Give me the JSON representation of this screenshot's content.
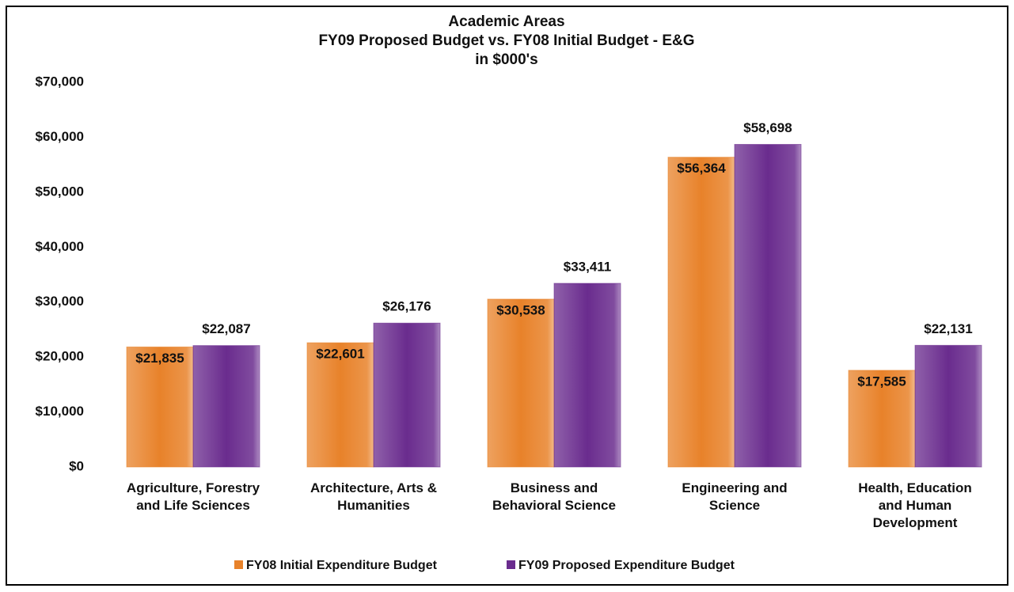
{
  "chart_data": {
    "type": "bar",
    "title_lines": [
      "Academic Areas",
      "FY09 Proposed Budget vs. FY08 Initial Budget - E&G",
      "in $000's"
    ],
    "categories": [
      [
        "Agriculture, Forestry",
        "and Life Sciences"
      ],
      [
        "Architecture, Arts &",
        "Humanities"
      ],
      [
        "Business and",
        "Behavioral Science"
      ],
      [
        "Engineering and",
        "Science"
      ],
      [
        "Health, Education",
        "and Human",
        "Development"
      ]
    ],
    "series": [
      {
        "name": "FY08 Initial Expenditure Budget",
        "color": "#e8822a",
        "values": [
          21835,
          22601,
          30538,
          56364,
          17585
        ],
        "value_labels": [
          "$21,835",
          "$22,601",
          "$30,538",
          "$56,364",
          "$17,585"
        ]
      },
      {
        "name": "FY09 Proposed Expenditure Budget",
        "color": "#6a2c8e",
        "values": [
          22087,
          26176,
          33411,
          58698,
          22131
        ],
        "value_labels": [
          "$22,087",
          "$26,176",
          "$33,411",
          "$58,698",
          "$22,131"
        ]
      }
    ],
    "ylim": [
      0,
      70000
    ],
    "yticks": [
      {
        "value": 0,
        "label": "$0"
      },
      {
        "value": 10000,
        "label": "$10,000"
      },
      {
        "value": 20000,
        "label": "$20,000"
      },
      {
        "value": 30000,
        "label": "$30,000"
      },
      {
        "value": 40000,
        "label": "$40,000"
      },
      {
        "value": 50000,
        "label": "$50,000"
      },
      {
        "value": 60000,
        "label": "$60,000"
      },
      {
        "value": 70000,
        "label": "$70,000"
      }
    ],
    "grid": false,
    "legend": "bottom"
  }
}
